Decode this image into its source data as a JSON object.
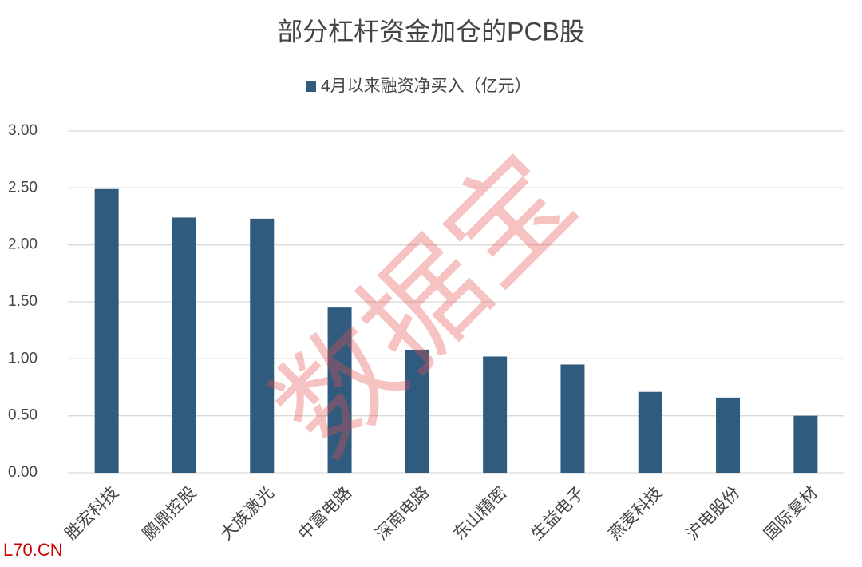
{
  "chart_data": {
    "type": "bar",
    "title": "部分杠杆资金加仓的PCB股",
    "categories": [
      "胜宏科技",
      "鹏鼎控股",
      "大族激光",
      "中富电路",
      "深南电路",
      "东山精密",
      "生益电子",
      "燕麦科技",
      "沪电股份",
      "国际复材"
    ],
    "series": [
      {
        "name": "4月以来融资净买入（亿元）",
        "color": "#2e5b7e",
        "values": [
          2.49,
          2.24,
          2.23,
          1.45,
          1.08,
          1.02,
          0.95,
          0.71,
          0.66,
          0.5
        ]
      }
    ],
    "ylim": [
      0,
      3
    ],
    "yticks": [
      {
        "value": 0,
        "label": "0.00"
      },
      {
        "value": 0.5,
        "label": "0.50"
      },
      {
        "value": 1,
        "label": "1.00"
      },
      {
        "value": 1.5,
        "label": "1.50"
      },
      {
        "value": 2,
        "label": "2.00"
      },
      {
        "value": 2.5,
        "label": "2.50"
      },
      {
        "value": 3,
        "label": "3.00"
      }
    ],
    "grid": true,
    "watermark": "数据宝",
    "footer": "L70.CN"
  }
}
